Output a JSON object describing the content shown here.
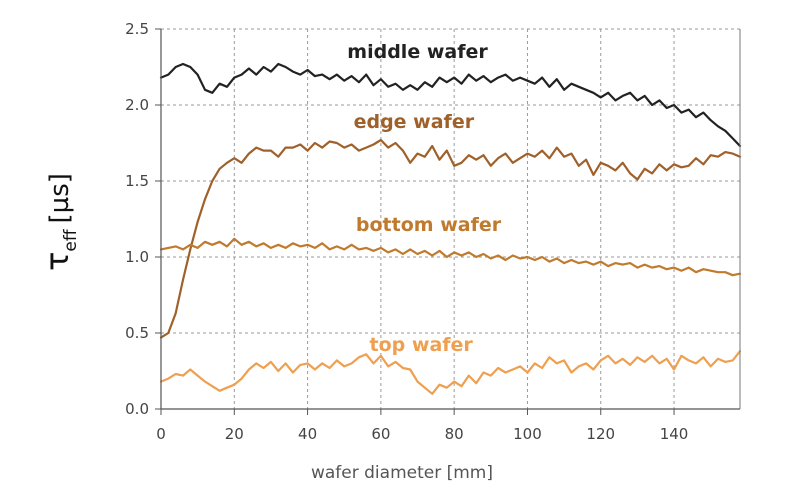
{
  "chart_data": {
    "type": "line",
    "xlabel": "wafer diameter [mm]",
    "ylabel": {
      "symbol": "τ",
      "subscript": "eff",
      "unit": "[µs]"
    },
    "xlim": [
      0,
      158
    ],
    "ylim": [
      0,
      2.5
    ],
    "xticks": [
      "0",
      "20",
      "40",
      "60",
      "80",
      "100",
      "120",
      "140"
    ],
    "yticks": [
      "0.0",
      "0.5",
      "1.0",
      "1.5",
      "2.0",
      "2.5"
    ],
    "grid": true,
    "series": [
      {
        "name": "middle wafer",
        "color": "#222222",
        "x": [
          0,
          2,
          4,
          6,
          8,
          10,
          12,
          14,
          16,
          18,
          20,
          22,
          24,
          26,
          28,
          30,
          32,
          34,
          36,
          38,
          40,
          42,
          44,
          46,
          48,
          50,
          52,
          54,
          56,
          58,
          60,
          62,
          64,
          66,
          68,
          70,
          72,
          74,
          76,
          78,
          80,
          82,
          84,
          86,
          88,
          90,
          92,
          94,
          96,
          98,
          100,
          102,
          104,
          106,
          108,
          110,
          112,
          114,
          116,
          118,
          120,
          122,
          124,
          126,
          128,
          130,
          132,
          134,
          136,
          138,
          140,
          142,
          144,
          146,
          148,
          150,
          152,
          154,
          156,
          158
        ],
        "y": [
          2.18,
          2.2,
          2.25,
          2.27,
          2.25,
          2.2,
          2.1,
          2.08,
          2.14,
          2.12,
          2.18,
          2.2,
          2.24,
          2.2,
          2.25,
          2.22,
          2.27,
          2.25,
          2.22,
          2.2,
          2.23,
          2.19,
          2.2,
          2.17,
          2.2,
          2.16,
          2.19,
          2.15,
          2.2,
          2.13,
          2.17,
          2.12,
          2.14,
          2.1,
          2.13,
          2.1,
          2.15,
          2.12,
          2.18,
          2.15,
          2.18,
          2.14,
          2.2,
          2.16,
          2.19,
          2.15,
          2.18,
          2.2,
          2.16,
          2.18,
          2.16,
          2.14,
          2.18,
          2.12,
          2.17,
          2.1,
          2.14,
          2.12,
          2.1,
          2.08,
          2.05,
          2.08,
          2.03,
          2.06,
          2.08,
          2.03,
          2.06,
          2.0,
          2.03,
          1.98,
          2.0,
          1.95,
          1.97,
          1.92,
          1.95,
          1.9,
          1.86,
          1.83,
          1.78,
          1.73
        ]
      },
      {
        "name": "edge wafer",
        "color": "#a0602a",
        "x": [
          0,
          2,
          4,
          6,
          8,
          10,
          12,
          14,
          16,
          18,
          20,
          22,
          24,
          26,
          28,
          30,
          32,
          34,
          36,
          38,
          40,
          42,
          44,
          46,
          48,
          50,
          52,
          54,
          56,
          58,
          60,
          62,
          64,
          66,
          68,
          70,
          72,
          74,
          76,
          78,
          80,
          82,
          84,
          86,
          88,
          90,
          92,
          94,
          96,
          98,
          100,
          102,
          104,
          106,
          108,
          110,
          112,
          114,
          116,
          118,
          120,
          122,
          124,
          126,
          128,
          130,
          132,
          134,
          136,
          138,
          140,
          142,
          144,
          146,
          148,
          150,
          152,
          154,
          156,
          158
        ],
        "y": [
          0.47,
          0.5,
          0.63,
          0.85,
          1.05,
          1.23,
          1.38,
          1.5,
          1.58,
          1.62,
          1.65,
          1.62,
          1.68,
          1.72,
          1.7,
          1.7,
          1.66,
          1.72,
          1.72,
          1.74,
          1.7,
          1.75,
          1.72,
          1.76,
          1.75,
          1.72,
          1.74,
          1.7,
          1.72,
          1.74,
          1.77,
          1.72,
          1.75,
          1.7,
          1.62,
          1.68,
          1.66,
          1.73,
          1.64,
          1.7,
          1.6,
          1.62,
          1.67,
          1.64,
          1.67,
          1.6,
          1.65,
          1.68,
          1.62,
          1.65,
          1.68,
          1.66,
          1.7,
          1.65,
          1.72,
          1.66,
          1.68,
          1.6,
          1.64,
          1.54,
          1.62,
          1.6,
          1.57,
          1.62,
          1.55,
          1.51,
          1.58,
          1.55,
          1.61,
          1.57,
          1.61,
          1.59,
          1.6,
          1.65,
          1.61,
          1.67,
          1.66,
          1.69,
          1.68,
          1.66
        ]
      },
      {
        "name": "bottom wafer",
        "color": "#c07a2e",
        "x": [
          0,
          2,
          4,
          6,
          8,
          10,
          12,
          14,
          16,
          18,
          20,
          22,
          24,
          26,
          28,
          30,
          32,
          34,
          36,
          38,
          40,
          42,
          44,
          46,
          48,
          50,
          52,
          54,
          56,
          58,
          60,
          62,
          64,
          66,
          68,
          70,
          72,
          74,
          76,
          78,
          80,
          82,
          84,
          86,
          88,
          90,
          92,
          94,
          96,
          98,
          100,
          102,
          104,
          106,
          108,
          110,
          112,
          114,
          116,
          118,
          120,
          122,
          124,
          126,
          128,
          130,
          132,
          134,
          136,
          138,
          140,
          142,
          144,
          146,
          148,
          150,
          152,
          154,
          156,
          158
        ],
        "y": [
          1.05,
          1.06,
          1.07,
          1.05,
          1.08,
          1.06,
          1.1,
          1.08,
          1.1,
          1.07,
          1.12,
          1.08,
          1.1,
          1.07,
          1.09,
          1.06,
          1.08,
          1.06,
          1.09,
          1.07,
          1.08,
          1.06,
          1.09,
          1.05,
          1.07,
          1.05,
          1.08,
          1.05,
          1.06,
          1.04,
          1.06,
          1.03,
          1.05,
          1.02,
          1.05,
          1.02,
          1.04,
          1.01,
          1.04,
          1.0,
          1.03,
          1.01,
          1.03,
          1.0,
          1.02,
          0.99,
          1.01,
          0.98,
          1.01,
          0.99,
          1.0,
          0.98,
          1.0,
          0.97,
          0.99,
          0.96,
          0.98,
          0.96,
          0.97,
          0.95,
          0.97,
          0.94,
          0.96,
          0.95,
          0.96,
          0.93,
          0.95,
          0.93,
          0.94,
          0.92,
          0.93,
          0.91,
          0.93,
          0.9,
          0.92,
          0.91,
          0.9,
          0.9,
          0.88,
          0.89
        ]
      },
      {
        "name": "top wafer",
        "color": "#eea050",
        "x": [
          0,
          2,
          4,
          6,
          8,
          10,
          12,
          14,
          16,
          18,
          20,
          22,
          24,
          26,
          28,
          30,
          32,
          34,
          36,
          38,
          40,
          42,
          44,
          46,
          48,
          50,
          52,
          54,
          56,
          58,
          60,
          62,
          64,
          66,
          68,
          70,
          72,
          74,
          76,
          78,
          80,
          82,
          84,
          86,
          88,
          90,
          92,
          94,
          96,
          98,
          100,
          102,
          104,
          106,
          108,
          110,
          112,
          114,
          116,
          118,
          120,
          122,
          124,
          126,
          128,
          130,
          132,
          134,
          136,
          138,
          140,
          142,
          144,
          146,
          148,
          150,
          152,
          154,
          156,
          158
        ],
        "y": [
          0.18,
          0.2,
          0.23,
          0.22,
          0.26,
          0.22,
          0.18,
          0.15,
          0.12,
          0.14,
          0.16,
          0.2,
          0.26,
          0.3,
          0.27,
          0.31,
          0.25,
          0.3,
          0.24,
          0.29,
          0.3,
          0.26,
          0.3,
          0.27,
          0.32,
          0.28,
          0.3,
          0.34,
          0.36,
          0.3,
          0.35,
          0.28,
          0.31,
          0.27,
          0.26,
          0.18,
          0.14,
          0.1,
          0.16,
          0.14,
          0.18,
          0.15,
          0.22,
          0.17,
          0.24,
          0.22,
          0.27,
          0.24,
          0.26,
          0.28,
          0.24,
          0.3,
          0.27,
          0.34,
          0.3,
          0.32,
          0.24,
          0.28,
          0.3,
          0.26,
          0.32,
          0.35,
          0.3,
          0.33,
          0.29,
          0.34,
          0.31,
          0.35,
          0.3,
          0.33,
          0.26,
          0.35,
          0.32,
          0.3,
          0.34,
          0.28,
          0.33,
          0.31,
          0.32,
          0.38
        ]
      }
    ],
    "annotations": [
      {
        "text": "middle wafer",
        "x": 70,
        "y": 2.31,
        "color": "#222222"
      },
      {
        "text": "edge wafer",
        "x": 69,
        "y": 1.85,
        "color": "#a0602a"
      },
      {
        "text": "bottom wafer",
        "x": 73,
        "y": 1.17,
        "color": "#c07a2e"
      },
      {
        "text": "top wafer",
        "x": 71,
        "y": 0.38,
        "color": "#eea050"
      }
    ]
  }
}
